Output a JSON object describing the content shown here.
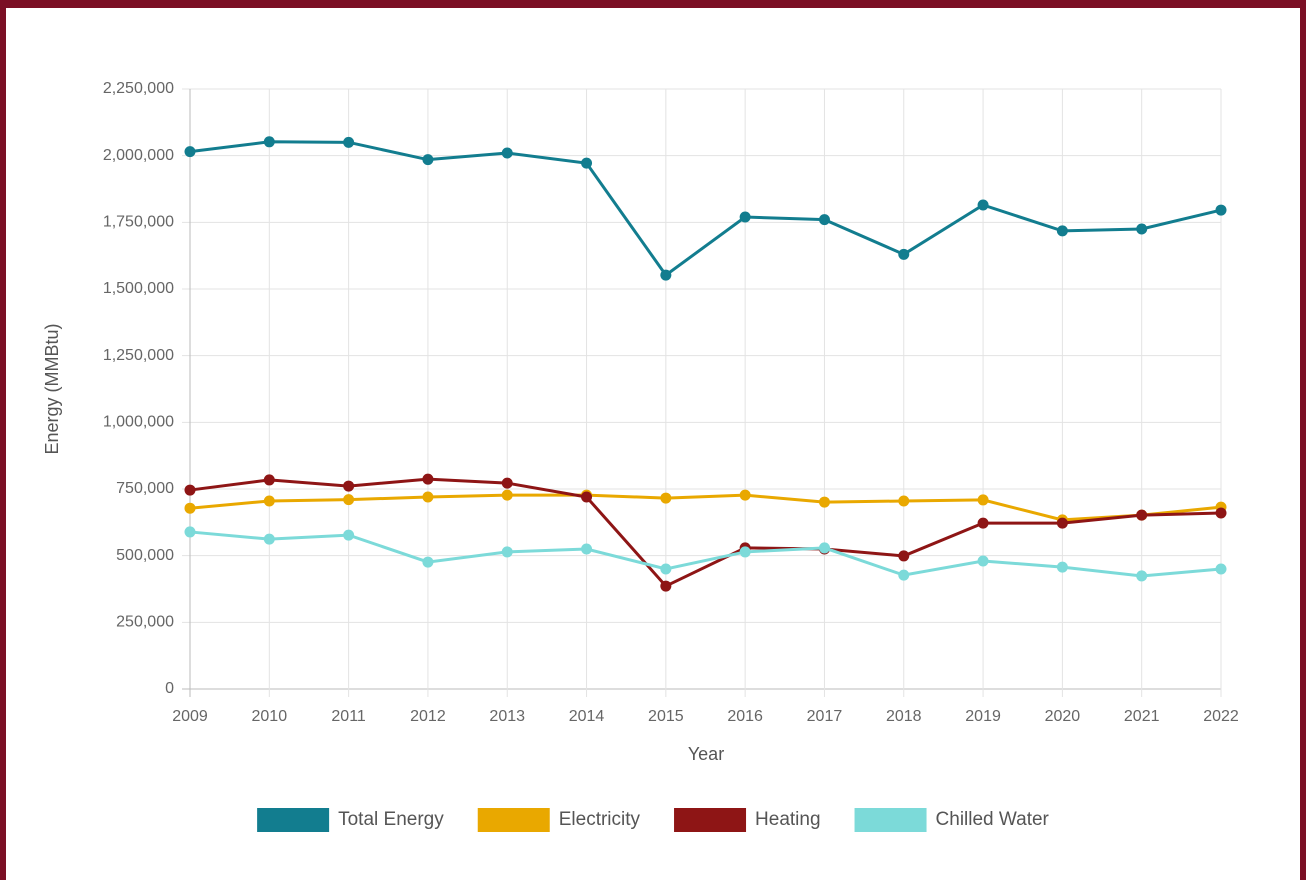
{
  "chart_data": {
    "type": "line",
    "categories": [
      "2009",
      "2010",
      "2011",
      "2012",
      "2013",
      "2014",
      "2015",
      "2016",
      "2017",
      "2018",
      "2019",
      "2020",
      "2021",
      "2022"
    ],
    "series": [
      {
        "name": "Total Energy",
        "color": "#127d8f",
        "values": [
          2015000,
          2052000,
          2050000,
          1985000,
          2010000,
          1972000,
          1552000,
          1770000,
          1760000,
          1630000,
          1815000,
          1718000,
          1725000,
          1796000
        ]
      },
      {
        "name": "Electricity",
        "color": "#e9a800",
        "values": [
          678000,
          705000,
          710000,
          720000,
          727000,
          727000,
          716000,
          727000,
          701000,
          705000,
          709000,
          634000,
          652000,
          682000
        ]
      },
      {
        "name": "Heating",
        "color": "#8e1515",
        "values": [
          746000,
          784000,
          761000,
          787000,
          772000,
          720000,
          386000,
          529000,
          525000,
          499000,
          622000,
          622000,
          652000,
          660000
        ]
      },
      {
        "name": "Chilled Water",
        "color": "#7cdad9",
        "values": [
          589000,
          562000,
          577000,
          476000,
          514000,
          525000,
          450000,
          514000,
          529000,
          427000,
          480000,
          457000,
          424000,
          450000
        ]
      }
    ],
    "ylim": [
      0,
      2250000
    ],
    "yticks": [
      0,
      {
        "value": 250000,
        "label": "250,000"
      },
      {
        "value": 500000,
        "label": "500,000"
      },
      {
        "value": 750000,
        "label": "750,000"
      },
      {
        "value": 1000000,
        "label": "1,000,000"
      },
      {
        "value": 1250000,
        "label": "1,250,000"
      },
      {
        "value": 1500000,
        "label": "1,500,000"
      },
      {
        "value": 1750000,
        "label": "1,750,000"
      },
      {
        "value": 2000000,
        "label": "2,000,000"
      },
      {
        "value": 2250000,
        "label": "2,250,000"
      }
    ],
    "xlabel": "Year",
    "ylabel": "Energy (MMBtu)",
    "grid": true,
    "legend": "bottom"
  }
}
